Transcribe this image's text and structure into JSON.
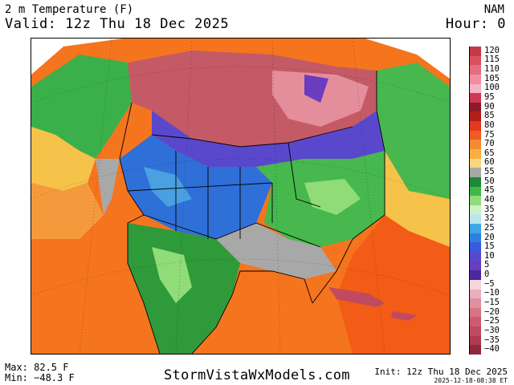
{
  "header": {
    "title": "2 m Temperature (F)",
    "valid": "Valid: 12z Thu 18 Dec 2025",
    "model": "NAM",
    "hour": "Hour: 0"
  },
  "footer": {
    "max": "Max: 82.5 F",
    "min": "Min: −48.3 F",
    "site": "StormVistaWxModels.com",
    "init": "Init: 12z Thu 18 Dec 2025",
    "stamp": "2025-12-18-08:38 ET"
  },
  "legend": {
    "labels": [
      "120",
      "115",
      "110",
      "105",
      "100",
      "95",
      "90",
      "85",
      "80",
      "75",
      "70",
      "65",
      "60",
      "55",
      "50",
      "45",
      "40",
      "35",
      "32",
      "25",
      "20",
      "15",
      "10",
      "5",
      "0",
      "−5",
      "−10",
      "−15",
      "−20",
      "−25",
      "−30",
      "−35",
      "−40"
    ],
    "colors": [
      "#c53a48",
      "#d95060",
      "#e36e80",
      "#ee90a0",
      "#f6b3c2",
      "#ce3a54",
      "#8c1a28",
      "#b02018",
      "#e23a1c",
      "#f05a28",
      "#f58a32",
      "#f9b040",
      "#f7d880",
      "#a8a8a8",
      "#1d8a38",
      "#42b64a",
      "#8fdc78",
      "#ccf2c4",
      "#b8e6ee",
      "#3fa8e0",
      "#2f7fe0",
      "#3a5ae0",
      "#5a48cc",
      "#6a3cc0",
      "#4a28a0",
      "#f5d4dc",
      "#eab0bc",
      "#e090a0",
      "#d87484",
      "#cc5c70",
      "#c04a60",
      "#b03a50",
      "#902840"
    ]
  },
  "map": {
    "projection": "polar-lambert-north-america",
    "ocean_color": "#f5741e",
    "water_colors": {
      "tropical": "#f25c16",
      "subtropical": "#f59a3c",
      "pacific_cool": "#3bb04a"
    },
    "land_colors": {
      "canada_cold": "#c45a66",
      "canada_arctic": "#e48e9c",
      "plains_cold": "#2f6fd8",
      "rockies": "#4aa0e0",
      "east_mild": "#46b84e",
      "south": "#a8a8a8",
      "mexico": "#2f9a3a"
    }
  }
}
